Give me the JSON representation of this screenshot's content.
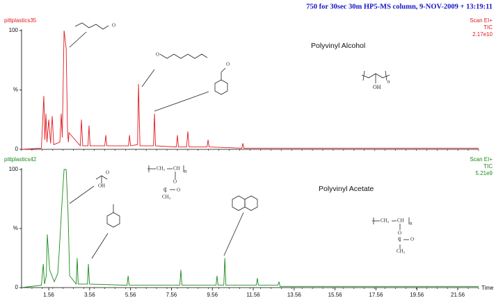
{
  "header": "750 for 30sec 30m HP5-MS column,  9-NOV-2009 + 13:19:11",
  "chart_data": [
    {
      "type": "line",
      "sample": "pittplastics35",
      "scan": "Scan EI+",
      "trace": "TIC",
      "intensity": "2.17e10",
      "title": "Polyvinyl Alcohol",
      "color": "#e0191e",
      "xlim": [
        0.23,
        22.58
      ],
      "ylim": [
        0,
        100
      ],
      "yticks": [
        0,
        {
          "value": 50,
          "label": "%"
        },
        100
      ],
      "x": [
        0.23,
        1.2,
        1.32,
        1.37,
        1.42,
        1.47,
        1.56,
        1.65,
        1.73,
        1.8,
        2.1,
        2.17,
        2.22,
        2.31,
        2.41,
        2.48,
        2.52,
        2.55,
        3.1,
        3.16,
        3.22,
        3.48,
        3.53,
        3.58,
        4.3,
        4.35,
        4.4,
        5.46,
        5.51,
        5.56,
        5.9,
        5.95,
        6.02,
        6.68,
        6.73,
        6.78,
        7.8,
        7.85,
        7.9,
        8.3,
        8.36,
        8.42,
        9.3,
        9.35,
        9.4,
        11.0,
        11.05,
        11.1,
        14,
        18,
        22.58
      ],
      "values": [
        0,
        1,
        45,
        8,
        30,
        6,
        25,
        5,
        28,
        4,
        6,
        30,
        10,
        100,
        85,
        15,
        6,
        14,
        3,
        25,
        3,
        3,
        20,
        3,
        3,
        12,
        3,
        3,
        12,
        3,
        4,
        55,
        3,
        3,
        30,
        3,
        2,
        12,
        2,
        2,
        15,
        2,
        2,
        8,
        2,
        1,
        5,
        1,
        1,
        1,
        1
      ],
      "structure_labels": [
        "O",
        "O",
        "O",
        "n",
        "OH"
      ]
    },
    {
      "type": "line",
      "sample": "pittplastics42",
      "scan": "Scan EI+",
      "trace": "TIC",
      "intensity": "5.21e9",
      "title": "Polyvinyl Acetate",
      "color": "#1a8a1a",
      "x_label": "Time",
      "xlim": [
        0.23,
        22.58
      ],
      "ylim": [
        0,
        100
      ],
      "xticks": [
        1.56,
        3.56,
        5.56,
        7.56,
        9.56,
        11.56,
        13.56,
        15.56,
        17.56,
        19.56,
        21.56
      ],
      "yticks": [
        0,
        {
          "value": 50,
          "label": "%"
        },
        100
      ],
      "x": [
        0.23,
        1.2,
        1.29,
        1.35,
        1.44,
        1.49,
        1.6,
        1.83,
        2.0,
        2.07,
        2.2,
        2.31,
        2.41,
        2.51,
        2.58,
        2.9,
        2.95,
        3.0,
        3.45,
        3.5,
        3.55,
        5.39,
        5.44,
        5.49,
        7.97,
        8.02,
        8.07,
        9.74,
        9.79,
        9.84,
        10.12,
        10.17,
        10.22,
        11.71,
        11.76,
        11.81,
        12.77,
        12.82,
        12.87,
        16,
        22.58
      ],
      "values": [
        0,
        2,
        20,
        3,
        10,
        45,
        15,
        5,
        12,
        30,
        70,
        100,
        100,
        60,
        10,
        3,
        25,
        3,
        3,
        20,
        3,
        2,
        10,
        2,
        2,
        15,
        2,
        2,
        10,
        2,
        2,
        25,
        2,
        2,
        8,
        2,
        2,
        5,
        1,
        1,
        1
      ],
      "structure_labels": [
        "O",
        "OH",
        "CH₂",
        "CH",
        "n",
        "O",
        "C",
        "O",
        "CH₃",
        "CH₂",
        "CH",
        "n",
        "O",
        "C",
        "O",
        "CH₃"
      ]
    }
  ]
}
